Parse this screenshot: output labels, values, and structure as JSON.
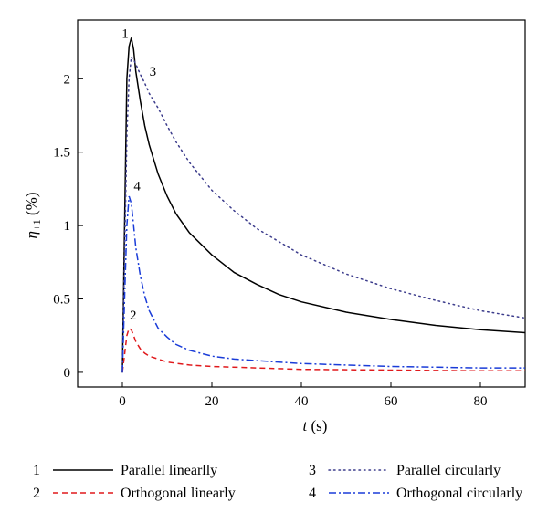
{
  "chart_data": {
    "type": "line",
    "xlabel": "t (s)",
    "ylabel": "η+1 (%)",
    "xlim": [
      -10,
      90
    ],
    "ylim": [
      -0.1,
      2.4
    ],
    "xticks": [
      0,
      20,
      40,
      60,
      80
    ],
    "yticks": [
      0,
      0.5,
      1,
      1.5,
      2
    ],
    "x_label_parts": {
      "var": "t",
      "unit": " (s)"
    },
    "y_label_parts": {
      "var": "η",
      "sub": "+1",
      "unit": " (%)"
    },
    "legend_position": "bottom",
    "series": [
      {
        "id": "1",
        "name": "Parallel linearlly",
        "color": "#000000",
        "dash": "solid",
        "x": [
          0,
          0.5,
          1,
          1.5,
          2,
          2.5,
          3,
          4,
          5,
          6,
          8,
          10,
          12,
          15,
          20,
          25,
          30,
          35,
          40,
          50,
          60,
          70,
          80,
          90
        ],
        "y": [
          0,
          1.0,
          2.0,
          2.22,
          2.28,
          2.2,
          2.05,
          1.85,
          1.68,
          1.55,
          1.35,
          1.2,
          1.08,
          0.95,
          0.8,
          0.68,
          0.6,
          0.53,
          0.48,
          0.41,
          0.36,
          0.32,
          0.29,
          0.27
        ]
      },
      {
        "id": "2",
        "name": "Orthogonal linearly",
        "color": "#e0191c",
        "dash": "dashed",
        "x": [
          0,
          0.5,
          1,
          1.5,
          2,
          2.5,
          3,
          4,
          5,
          6,
          8,
          10,
          15,
          20,
          30,
          40,
          60,
          80,
          90
        ],
        "y": [
          0,
          0.12,
          0.25,
          0.3,
          0.29,
          0.25,
          0.21,
          0.16,
          0.13,
          0.11,
          0.09,
          0.07,
          0.05,
          0.04,
          0.03,
          0.02,
          0.015,
          0.01,
          0.01
        ]
      },
      {
        "id": "3",
        "name": "Parallel circularly",
        "color": "#3c3c8c",
        "dash": "dotted",
        "x": [
          0,
          0.5,
          1,
          1.5,
          2,
          2.5,
          3,
          4,
          5,
          6,
          8,
          10,
          12,
          15,
          20,
          25,
          30,
          40,
          50,
          60,
          70,
          80,
          90
        ],
        "y": [
          0,
          0.8,
          1.6,
          2.0,
          2.15,
          2.13,
          2.1,
          2.03,
          1.97,
          1.9,
          1.8,
          1.68,
          1.57,
          1.43,
          1.24,
          1.1,
          0.98,
          0.8,
          0.67,
          0.57,
          0.49,
          0.42,
          0.37
        ]
      },
      {
        "id": "4",
        "name": "Orthogonal circularly",
        "color": "#1a3cd8",
        "dash": "dashdot",
        "x": [
          0,
          0.5,
          1,
          1.5,
          2,
          2.5,
          3,
          4,
          5,
          6,
          8,
          10,
          12,
          15,
          20,
          25,
          30,
          40,
          50,
          60,
          70,
          80,
          90
        ],
        "y": [
          0,
          0.5,
          1.0,
          1.2,
          1.15,
          1.0,
          0.85,
          0.66,
          0.52,
          0.42,
          0.3,
          0.24,
          0.19,
          0.15,
          0.11,
          0.09,
          0.08,
          0.06,
          0.05,
          0.04,
          0.035,
          0.03,
          0.03
        ]
      }
    ],
    "curve_labels": [
      {
        "series": "1",
        "text": "1",
        "x": 0.6,
        "y": 2.28
      },
      {
        "series": "3",
        "text": "3",
        "x": 6.8,
        "y": 2.02
      },
      {
        "series": "4",
        "text": "4",
        "x": 3.3,
        "y": 1.24
      },
      {
        "series": "2",
        "text": "2",
        "x": 2.4,
        "y": 0.36
      }
    ]
  }
}
